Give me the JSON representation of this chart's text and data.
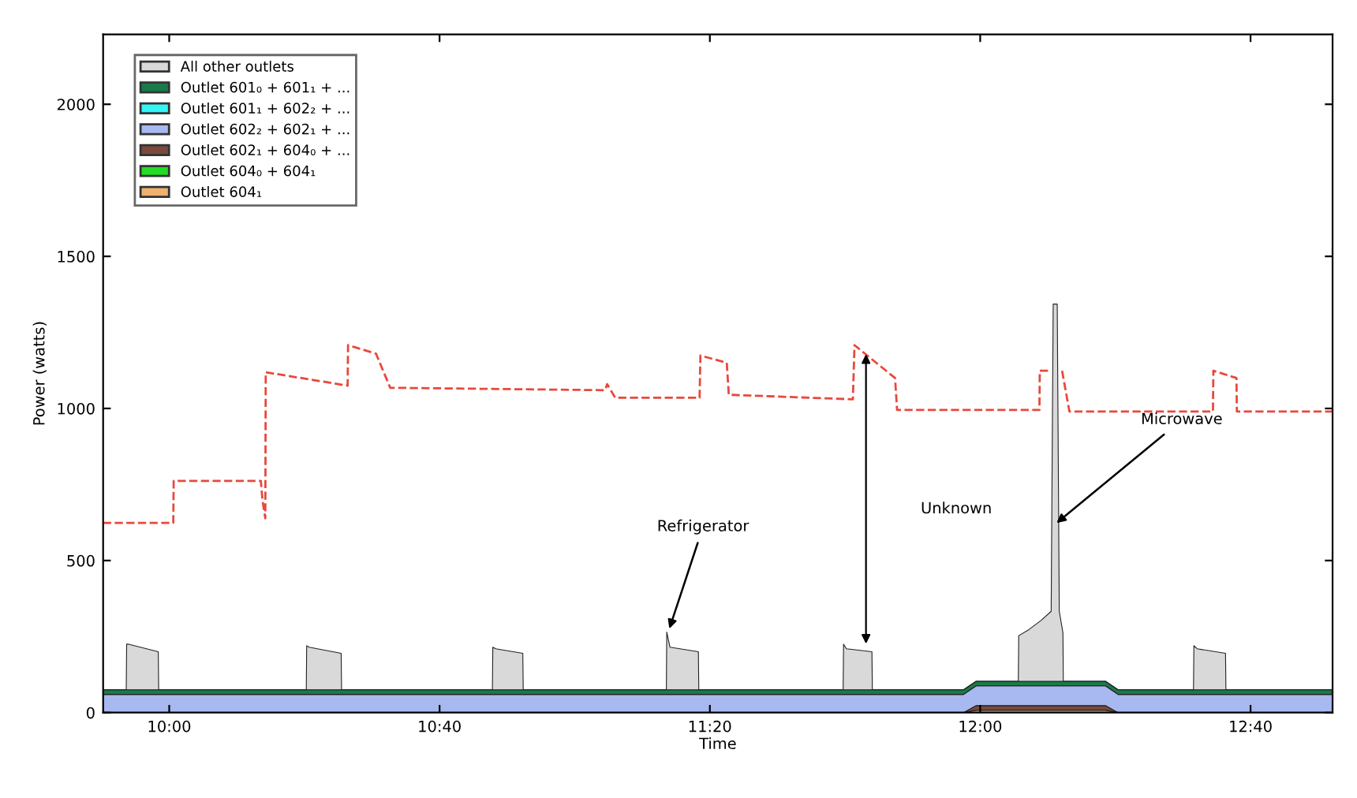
{
  "chart_data": {
    "type": "area",
    "stacked": true,
    "xlabel": "Time",
    "ylabel": "Power (watts)",
    "x": [
      9.837,
      9.894,
      9.895,
      9.9,
      9.973,
      9.974,
      10.338,
      10.339,
      10.345,
      10.424,
      10.425,
      10.797,
      10.798,
      10.805,
      10.872,
      10.873,
      11.226,
      11.227,
      11.235,
      11.305,
      11.306,
      11.662,
      11.663,
      11.67,
      11.733,
      11.734,
      11.959,
      11.99,
      12.094,
      12.095,
      12.12,
      12.15,
      12.175,
      12.18,
      12.19,
      12.195,
      12.204,
      12.205,
      12.309,
      12.34,
      12.526,
      12.527,
      12.535,
      12.605,
      12.606,
      12.869
    ],
    "series": [
      {
        "name": "Outlet 604₁",
        "color": "#f0b070",
        "values": [
          0,
          0,
          0,
          0,
          0,
          0,
          0,
          0,
          0,
          0,
          0,
          0,
          0,
          0,
          0,
          0,
          0,
          0,
          0,
          0,
          0,
          0,
          0,
          0,
          0,
          0,
          0,
          8,
          8,
          8,
          8,
          8,
          8,
          8,
          8,
          8,
          8,
          8,
          8,
          0,
          0,
          0,
          0,
          0,
          0,
          0
        ]
      },
      {
        "name": "Outlet 604₀ + 604₁",
        "color": "#22dd22",
        "values": [
          null,
          null,
          null,
          null,
          null,
          null,
          null,
          null,
          null,
          null,
          null,
          null,
          null,
          null,
          null,
          null,
          null,
          null,
          null,
          null,
          null,
          null,
          null,
          null,
          null,
          null,
          null,
          null,
          null,
          null,
          null,
          null,
          null,
          null,
          null,
          null,
          null,
          null,
          null,
          null,
          null,
          null,
          null,
          null,
          null,
          null
        ]
      },
      {
        "name": "Outlet 602₁ + 604₀ + ...",
        "color": "#7a4a3e",
        "values": [
          0,
          0,
          0,
          0,
          0,
          0,
          0,
          0,
          0,
          0,
          0,
          0,
          0,
          0,
          0,
          0,
          0,
          0,
          0,
          0,
          0,
          0,
          0,
          0,
          0,
          0,
          0,
          15,
          15,
          15,
          15,
          15,
          15,
          15,
          15,
          15,
          15,
          15,
          15,
          0,
          0,
          0,
          0,
          0,
          0,
          0
        ]
      },
      {
        "name": "Outlet 602₂ + 602₁ + ...",
        "color": "#a8b8f0",
        "values": [
          60,
          60,
          60,
          60,
          60,
          60,
          60,
          60,
          60,
          60,
          60,
          60,
          60,
          60,
          60,
          60,
          60,
          60,
          60,
          60,
          60,
          60,
          60,
          60,
          60,
          60,
          60,
          65,
          65,
          65,
          65,
          65,
          65,
          65,
          65,
          65,
          65,
          65,
          65,
          60,
          60,
          60,
          60,
          60,
          60,
          60
        ]
      },
      {
        "name": "Outlet 601₁ + 602₂ + ...",
        "color": "#33f5f5",
        "values": [
          null,
          null,
          null,
          null,
          null,
          null,
          null,
          null,
          null,
          null,
          null,
          null,
          null,
          null,
          null,
          null,
          null,
          null,
          null,
          null,
          null,
          null,
          null,
          null,
          null,
          null,
          null,
          null,
          null,
          null,
          null,
          null,
          null,
          null,
          null,
          null,
          null,
          null,
          null,
          null,
          null,
          null,
          null,
          null,
          null,
          null
        ]
      },
      {
        "name": "Outlet 601₀ + 601₁ + ...",
        "color": "#1a7a4a",
        "values": [
          15,
          15,
          15,
          15,
          15,
          15,
          15,
          15,
          15,
          15,
          15,
          15,
          15,
          15,
          15,
          15,
          15,
          15,
          15,
          15,
          15,
          15,
          15,
          15,
          15,
          15,
          15,
          15,
          15,
          15,
          15,
          15,
          15,
          15,
          15,
          15,
          15,
          15,
          15,
          15,
          15,
          15,
          15,
          15,
          15,
          15
        ]
      },
      {
        "name": "All other outlets",
        "color": "#d9d9d9",
        "values": [
          0,
          0,
          150,
          150,
          125,
          0,
          0,
          145,
          140,
          120,
          0,
          0,
          140,
          135,
          120,
          0,
          0,
          190,
          140,
          125,
          0,
          0,
          150,
          135,
          125,
          0,
          0,
          0,
          0,
          150,
          170,
          200,
          230,
          1240,
          1240,
          230,
          160,
          0,
          0,
          0,
          0,
          145,
          135,
          120,
          0,
          0
        ]
      },
      {
        "type": "line",
        "color": "#e8483c",
        "line_style": "dashed",
        "x": [
          9.837,
          10.01,
          10.011,
          10.226,
          10.23,
          10.237,
          10.238,
          10.44,
          10.441,
          10.51,
          10.545,
          11.075,
          11.08,
          11.1,
          11.308,
          11.31,
          11.375,
          11.38,
          11.686,
          11.69,
          11.79,
          11.795,
          12.146,
          12.147,
          12.168,
          12.17,
          12.2,
          12.202,
          12.22,
          12.574,
          12.575,
          12.632,
          12.633,
          12.869
        ],
        "values": [
          624,
          624,
          762,
          762,
          698,
          639,
          1119,
          1075,
          1208,
          1180,
          1068,
          1060,
          1080,
          1035,
          1035,
          1174,
          1150,
          1045,
          1030,
          1208,
          1100,
          995,
          995,
          1124,
          1124,
          null,
          null,
          1124,
          990,
          990,
          1124,
          1100,
          990,
          990
        ]
      }
    ],
    "xlim": [
      9.837,
      12.869
    ],
    "ylim": [
      0,
      2230
    ],
    "xticks": [
      {
        "value": 10,
        "label": "10:00"
      },
      {
        "value": 10.6667,
        "label": "10:40"
      },
      {
        "value": 11.3333,
        "label": "11:20"
      },
      {
        "value": 12,
        "label": "12:00"
      },
      {
        "value": 12.6667,
        "label": "12:40"
      }
    ],
    "yticks": [
      0,
      500,
      1000,
      1500,
      2000
    ],
    "legend": "top left",
    "grid": false,
    "annotations": [
      {
        "text": "Refrigerator",
        "x": 11.23,
        "y": 262
      },
      "Unknown",
      {
        "text": "Microwave",
        "x": 12.18,
        "y": 614
      }
    ]
  }
}
